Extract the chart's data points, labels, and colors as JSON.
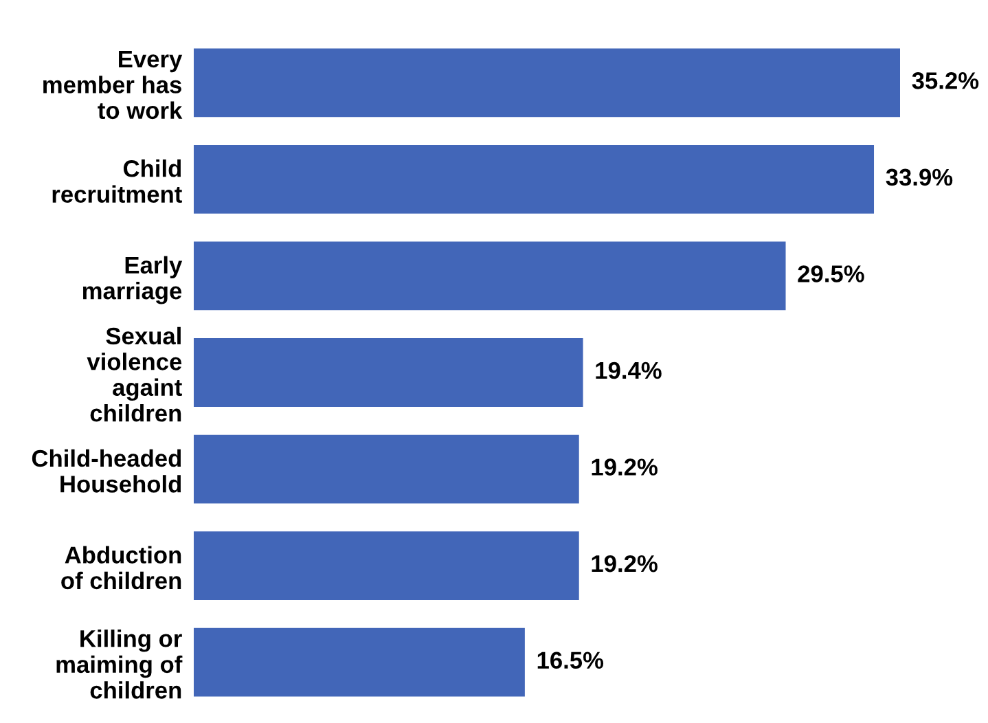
{
  "chart_data": {
    "type": "bar",
    "orientation": "horizontal",
    "categories": [
      "Every\nmember has\nto work",
      "Child\nrecruitment",
      "Early\nmarriage",
      "Sexual\nviolence\nagaint\nchildren",
      "Child-headed\nHousehold",
      "Abduction\nof children",
      "Killing or\nmaiming of\nchildren"
    ],
    "values": [
      35.2,
      33.9,
      29.5,
      19.4,
      19.2,
      19.2,
      16.5
    ],
    "value_labels": [
      "35.2%",
      "33.9%",
      "29.5%",
      "19.4%",
      "19.2%",
      "19.2%",
      "16.5%"
    ],
    "color": "#4266b8",
    "grid": false,
    "legend": false
  }
}
